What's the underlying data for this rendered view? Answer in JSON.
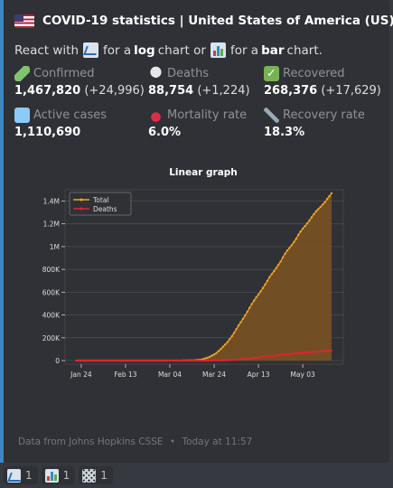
{
  "embed": {
    "title": "COVID-19 statistics | United States of America (US)",
    "description": {
      "part1": "React with",
      "part2": "for a",
      "log_word": "log",
      "part3": "chart or",
      "part4": "for a",
      "bar_word": "bar",
      "part5": "chart."
    },
    "fields": [
      {
        "name": "Confirmed",
        "value": "1,467,820",
        "delta": "(+24,996)",
        "icon": "syringe-icon"
      },
      {
        "name": "Deaths",
        "value": "88,754",
        "delta": "(+1,224)",
        "icon": "skull-crossbones-icon"
      },
      {
        "name": "Recovered",
        "value": "268,376",
        "delta": "(+17,629)",
        "icon": "check-mark-icon"
      },
      {
        "name": "Active cases",
        "value": "1,110,690",
        "delta": "",
        "icon": "hospital-icon"
      },
      {
        "name": "Mortality rate",
        "value": "6.0%",
        "delta": "",
        "icon": "drop-of-blood-icon"
      },
      {
        "name": "Recovery rate",
        "value": "18.3%",
        "delta": "",
        "icon": "dna-icon"
      }
    ],
    "footer": {
      "source": "Data from Johns Hopkins CSSE",
      "separator": "•",
      "time": "Today at 11:57"
    }
  },
  "reactions": [
    {
      "icon": "chart-increasing-icon",
      "count": "1"
    },
    {
      "icon": "bar-chart-icon",
      "count": "1"
    },
    {
      "icon": "basketball-hoop-icon",
      "count": "1"
    }
  ],
  "colors": {
    "total": "#f5a623",
    "total_fill": "#7a5224",
    "deaths": "#e0242f",
    "accent": "#3b88c3"
  },
  "chart_data": {
    "type": "line",
    "title": "Linear graph",
    "xlabel": "",
    "ylabel": "",
    "x_ticks": [
      "Jan 24",
      "Feb 13",
      "Mar 04",
      "Mar 24",
      "Apr 13",
      "May 03"
    ],
    "y_ticks": [
      "0",
      "200K",
      "400K",
      "600K",
      "800K",
      "1M",
      "1.2M",
      "1.4M"
    ],
    "ylim": [
      0,
      1500000
    ],
    "grid": true,
    "legend": "top-left",
    "x_start": "2020-01-22",
    "x_end": "2020-05-16",
    "series": [
      {
        "name": "Total",
        "values": [
          1,
          1,
          2,
          2,
          5,
          5,
          5,
          5,
          5,
          7,
          8,
          8,
          11,
          11,
          11,
          11,
          11,
          11,
          11,
          11,
          12,
          12,
          13,
          13,
          13,
          13,
          13,
          13,
          13,
          13,
          15,
          15,
          15,
          51,
          51,
          57,
          58,
          60,
          68,
          74,
          98,
          118,
          149,
          217,
          262,
          402,
          518,
          583,
          959,
          1281,
          1663,
          2179,
          2727,
          3499,
          4632,
          6421,
          7783,
          13747,
          19273,
          25600,
          33276,
          43843,
          53740,
          65778,
          83836,
          101657,
          121465,
          140909,
          161831,
          188172,
          213242,
          243622,
          275367,
          308650,
          336802,
          366317,
          397121,
          428654,
          462780,
          496535,
          526396,
          555313,
          580619,
          607670,
          636350,
          667592,
          699706,
          732197,
          758809,
          784326,
          811865,
          840351,
          869170,
          905358,
          938154,
          965785,
          988197,
          1012582,
          1039909,
          1069424,
          1103461,
          1132539,
          1158040,
          1180375,
          1204351,
          1229331,
          1257023,
          1283929,
          1309550,
          1329260,
          1347881,
          1369376,
          1390406,
          1417774,
          1442824,
          1467820
        ]
      },
      {
        "name": "Deaths",
        "values": [
          0,
          0,
          0,
          0,
          0,
          0,
          0,
          0,
          0,
          0,
          0,
          0,
          0,
          0,
          0,
          0,
          0,
          0,
          0,
          0,
          0,
          0,
          0,
          0,
          0,
          0,
          0,
          0,
          0,
          0,
          0,
          0,
          0,
          0,
          0,
          0,
          0,
          0,
          1,
          6,
          7,
          11,
          12,
          14,
          17,
          21,
          22,
          28,
          36,
          40,
          47,
          54,
          63,
          85,
          108,
          118,
          200,
          244,
          307,
          427,
          552,
          706,
          942,
          1209,
          1581,
          2026,
          2467,
          2978,
          3873,
          4757,
          5926,
          7087,
          8407,
          9619,
          10783,
          12794,
          14704,
          16553,
          18595,
          20471,
          22032,
          23546,
          25856,
          28326,
          32916,
          34722,
          36773,
          38664,
          40661,
          42094,
          44444,
          46622,
          49954,
          51949,
          53755,
          54881,
          56259,
          58355,
          60967,
          62996,
          64943,
          66369,
          67682,
          68922,
          71064,
          73431,
          75662,
          77180,
          78795,
          79526,
          80682,
          82356,
          84119,
          85898,
          87530,
          88754
        ]
      }
    ]
  }
}
